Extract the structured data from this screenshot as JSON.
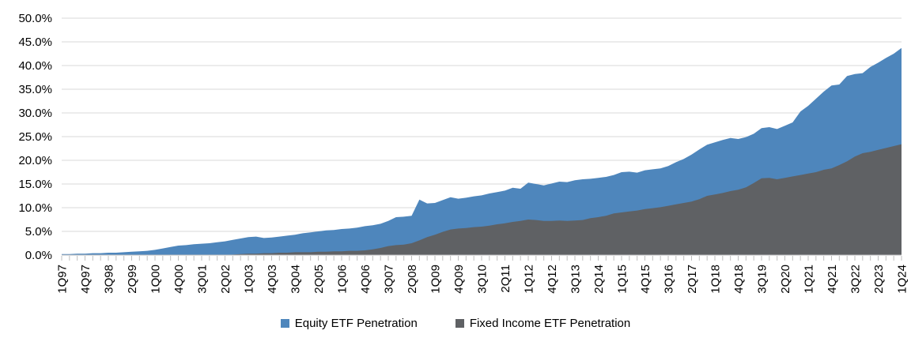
{
  "chart_data": {
    "type": "area",
    "title": "",
    "xlabel": "",
    "ylabel": "",
    "grid": "horizontal",
    "overlapping_series": true,
    "legend_position": "bottom-center",
    "y_axis": {
      "min": 0,
      "max": 50,
      "tick_step": 5,
      "tick_labels": [
        "0.0%",
        "5.0%",
        "10.0%",
        "15.0%",
        "20.0%",
        "25.0%",
        "30.0%",
        "35.0%",
        "40.0%",
        "45.0%",
        "50.0%"
      ]
    },
    "x_axis": {
      "tick_label_interval": 3,
      "quarters": [
        "1Q97",
        "2Q97",
        "3Q97",
        "4Q97",
        "1Q98",
        "2Q98",
        "3Q98",
        "4Q98",
        "1Q99",
        "2Q99",
        "3Q99",
        "4Q99",
        "1Q00",
        "2Q00",
        "3Q00",
        "4Q00",
        "1Q01",
        "2Q01",
        "3Q01",
        "4Q01",
        "1Q02",
        "2Q02",
        "3Q02",
        "4Q02",
        "1Q03",
        "2Q03",
        "3Q03",
        "4Q03",
        "1Q04",
        "2Q04",
        "3Q04",
        "4Q04",
        "1Q05",
        "2Q05",
        "3Q05",
        "4Q05",
        "1Q06",
        "2Q06",
        "3Q06",
        "4Q06",
        "1Q07",
        "2Q07",
        "3Q07",
        "4Q07",
        "1Q08",
        "2Q08",
        "3Q08",
        "4Q08",
        "1Q09",
        "2Q09",
        "3Q09",
        "4Q09",
        "1Q10",
        "2Q10",
        "3Q10",
        "4Q10",
        "1Q11",
        "2Q11",
        "3Q11",
        "4Q11",
        "1Q12",
        "2Q12",
        "3Q12",
        "4Q12",
        "1Q13",
        "2Q13",
        "3Q13",
        "4Q13",
        "1Q14",
        "2Q14",
        "3Q14",
        "4Q14",
        "1Q15",
        "2Q15",
        "3Q15",
        "4Q15",
        "1Q16",
        "2Q16",
        "3Q16",
        "4Q16",
        "1Q17",
        "2Q17",
        "3Q17",
        "4Q17",
        "1Q18",
        "2Q18",
        "3Q18",
        "4Q18",
        "1Q19",
        "2Q19",
        "3Q19",
        "4Q19",
        "1Q20",
        "2Q20",
        "3Q20",
        "4Q20",
        "1Q21",
        "2Q21",
        "3Q21",
        "4Q21",
        "1Q22",
        "2Q22",
        "3Q22",
        "4Q22",
        "1Q23",
        "2Q23",
        "3Q23",
        "4Q23",
        "1Q24"
      ]
    },
    "series": [
      {
        "name": "Equity ETF Penetration",
        "color": "#4E86BC",
        "values": [
          0.2,
          0.2,
          0.3,
          0.3,
          0.4,
          0.4,
          0.5,
          0.5,
          0.6,
          0.7,
          0.8,
          0.9,
          1.1,
          1.4,
          1.7,
          2.0,
          2.1,
          2.3,
          2.4,
          2.5,
          2.7,
          2.9,
          3.2,
          3.5,
          3.8,
          3.9,
          3.6,
          3.7,
          3.9,
          4.1,
          4.3,
          4.6,
          4.8,
          5.0,
          5.2,
          5.3,
          5.5,
          5.6,
          5.8,
          6.1,
          6.3,
          6.6,
          7.2,
          8.0,
          8.1,
          8.3,
          11.7,
          10.9,
          11.0,
          11.6,
          12.2,
          11.9,
          12.1,
          12.4,
          12.6,
          13.0,
          13.3,
          13.6,
          14.2,
          14.0,
          15.3,
          15.0,
          14.7,
          15.1,
          15.5,
          15.4,
          15.8,
          16.0,
          16.1,
          16.3,
          16.5,
          16.9,
          17.5,
          17.6,
          17.4,
          17.9,
          18.1,
          18.3,
          18.8,
          19.6,
          20.3,
          21.2,
          22.3,
          23.3,
          23.8,
          24.3,
          24.7,
          24.5,
          24.9,
          25.6,
          26.8,
          27.0,
          26.6,
          27.3,
          28.0,
          30.3,
          31.5,
          33.0,
          34.5,
          35.8,
          36.0,
          37.8,
          38.2,
          38.4,
          39.7,
          40.6,
          41.6,
          42.5,
          43.7
        ]
      },
      {
        "name": "Fixed Income ETF Penetration",
        "color": "#5F6164",
        "values": [
          0,
          0,
          0,
          0,
          0,
          0,
          0,
          0,
          0,
          0,
          0,
          0,
          0,
          0,
          0,
          0,
          0,
          0,
          0,
          0,
          0,
          0,
          0.1,
          0.2,
          0.3,
          0.3,
          0.4,
          0.4,
          0.5,
          0.5,
          0.6,
          0.6,
          0.6,
          0.7,
          0.7,
          0.8,
          0.8,
          0.9,
          0.9,
          1.0,
          1.2,
          1.5,
          1.9,
          2.1,
          2.2,
          2.5,
          3.1,
          3.8,
          4.3,
          4.9,
          5.4,
          5.6,
          5.7,
          5.9,
          6.0,
          6.2,
          6.5,
          6.7,
          7.0,
          7.2,
          7.5,
          7.4,
          7.2,
          7.2,
          7.3,
          7.2,
          7.3,
          7.4,
          7.8,
          8.0,
          8.3,
          8.8,
          9.0,
          9.2,
          9.4,
          9.7,
          9.9,
          10.1,
          10.4,
          10.7,
          11.0,
          11.3,
          11.8,
          12.5,
          12.8,
          13.1,
          13.5,
          13.8,
          14.3,
          15.2,
          16.2,
          16.3,
          16.0,
          16.3,
          16.6,
          16.9,
          17.2,
          17.5,
          18.0,
          18.3,
          19.0,
          19.8,
          20.8,
          21.5,
          21.8,
          22.2,
          22.6,
          23.0,
          23.4
        ]
      }
    ]
  },
  "legend": {
    "equity_label": "Equity ETF Penetration",
    "fixed_income_label": "Fixed Income ETF Penetration"
  },
  "colors": {
    "equity": "#4E86BC",
    "fixed_income": "#5F6164",
    "gridline": "#D9D9D9",
    "axis_line": "#BFBFBF",
    "tick": "#BFBFBF",
    "axis_text": "#000000",
    "background": "#FFFFFF"
  }
}
